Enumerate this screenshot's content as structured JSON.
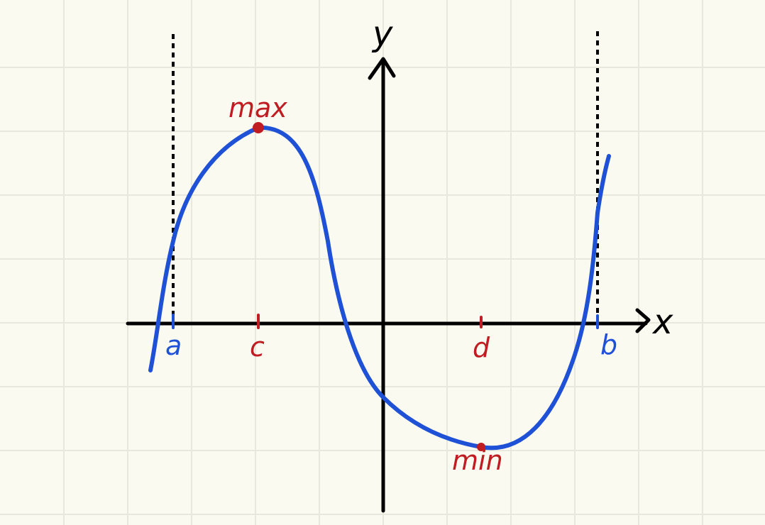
{
  "diagram": {
    "x_axis_label": "x",
    "y_axis_label": "y",
    "points": {
      "a": "a",
      "b": "b",
      "c": "c",
      "d": "d"
    },
    "extrema": {
      "max_label": "max",
      "min_label": "min"
    }
  },
  "colors": {
    "background": "#fbfaf1",
    "grid": "#e9e8dc",
    "axis": "#000000",
    "curve": "#1f51d6",
    "boundary_labels": "#1f51d6",
    "critical_labels": "#bf1d22"
  }
}
